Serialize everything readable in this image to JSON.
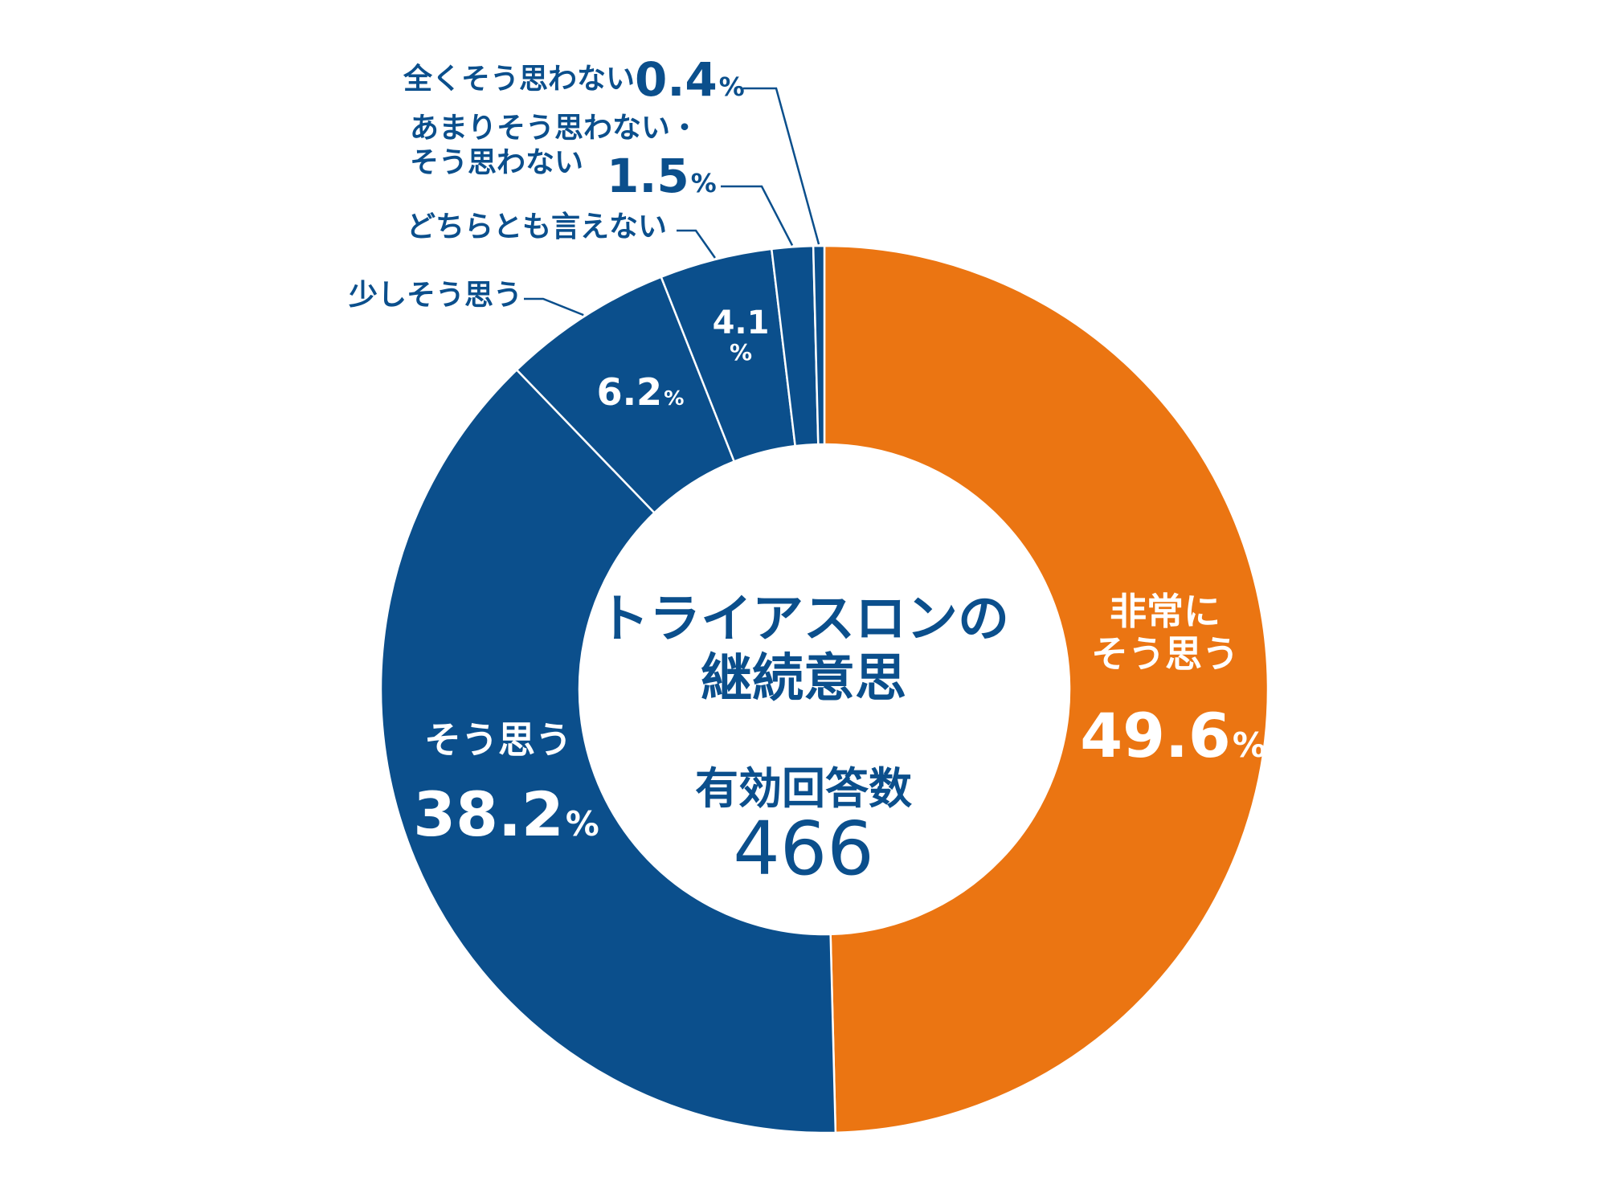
{
  "chart_data": {
    "type": "pie",
    "variant": "donut",
    "center_title": [
      "トライアスロンの",
      "継続意思"
    ],
    "center_subtitle": "有効回答数",
    "center_value": "466",
    "slices": [
      {
        "label": "非常にそう思う",
        "label_lines": [
          "非常に",
          "そう思う"
        ],
        "value": 49.6,
        "value_text": "49.6",
        "unit": "%",
        "color": "#eb7512"
      },
      {
        "label": "そう思う",
        "label_lines": [
          "そう思う"
        ],
        "value": 38.2,
        "value_text": "38.2",
        "unit": "%",
        "color": "#0b4f8c"
      },
      {
        "label": "少しそう思う",
        "label_lines": [
          "少しそう思う"
        ],
        "value": 6.2,
        "value_text": "6.2",
        "unit": "%",
        "color": "#0b4f8c"
      },
      {
        "label": "どちらとも言えない",
        "label_lines": [
          "どちらとも言えない"
        ],
        "value": 4.1,
        "value_text": "4.1",
        "unit": "%",
        "color": "#0b4f8c"
      },
      {
        "label": "あまりそう思わない・そう思わない",
        "label_lines": [
          "あまりそう思わない・",
          "そう思わない"
        ],
        "value": 1.5,
        "value_text": "1.5",
        "unit": "%",
        "color": "#0b4f8c"
      },
      {
        "label": "全くそう思わない",
        "label_lines": [
          "全くそう思わない"
        ],
        "value": 0.4,
        "value_text": "0.4",
        "unit": "%",
        "color": "#0b4f8c"
      }
    ],
    "start": "12 o'clock",
    "direction": "clockwise",
    "legend": "none"
  }
}
